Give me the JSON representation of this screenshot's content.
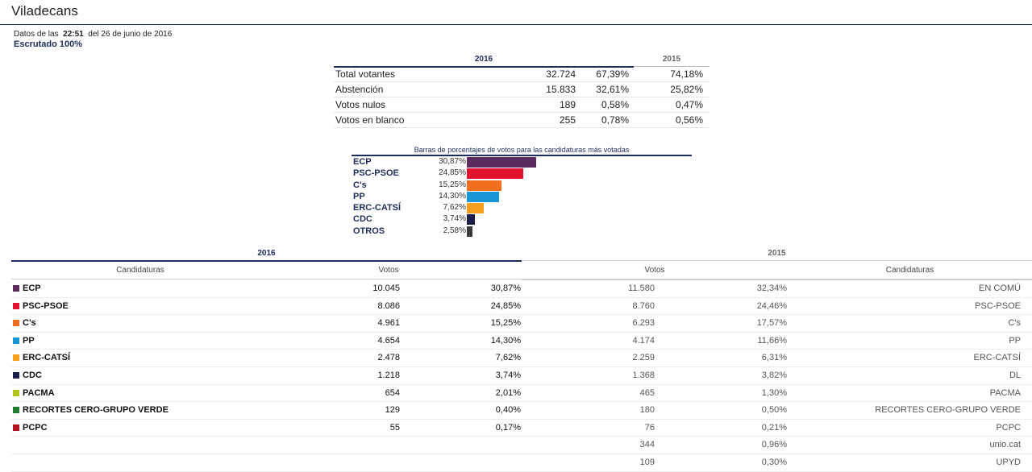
{
  "page": {
    "title": "Viladecans"
  },
  "meta": {
    "data_prefix": "Datos de las",
    "time": "22:51",
    "date_suffix": "del 26 de junio de 2016",
    "scrutiny": "Escrutado 100%"
  },
  "summary": {
    "year_current": "2016",
    "year_previous": "2015",
    "rows": [
      {
        "label": "Total votantes",
        "votes": "32.724",
        "pct": "67,39%",
        "pct_prev": "74,18%"
      },
      {
        "label": "Abstención",
        "votes": "15.833",
        "pct": "32,61%",
        "pct_prev": "25,82%"
      },
      {
        "label": "Votos nulos",
        "votes": "189",
        "pct": "0,58%",
        "pct_prev": "0,47%"
      },
      {
        "label": "Votos en blanco",
        "votes": "255",
        "pct": "0,78%",
        "pct_prev": "0,56%"
      }
    ]
  },
  "bars": {
    "title": "Barras de porcentajes de votos para las candidaturas más votadas",
    "items": [
      {
        "name": "ECP",
        "pct_label": "30,87%",
        "value": 30.87,
        "color": "#5b2a5e"
      },
      {
        "name": "PSC-PSOE",
        "pct_label": "24,85%",
        "value": 24.85,
        "color": "#e2112e"
      },
      {
        "name": "C's",
        "pct_label": "15,25%",
        "value": 15.25,
        "color": "#f07020"
      },
      {
        "name": "PP",
        "pct_label": "14,30%",
        "value": 14.3,
        "color": "#1a95d6"
      },
      {
        "name": "ERC-CATSÍ",
        "pct_label": "7,62%",
        "value": 7.62,
        "color": "#f5a020"
      },
      {
        "name": "CDC",
        "pct_label": "3,74%",
        "value": 3.74,
        "color": "#1b1f4a"
      },
      {
        "name": "OTROS",
        "pct_label": "2,58%",
        "value": 2.58,
        "color": "#3a3a3a"
      }
    ]
  },
  "results": {
    "year_current": "2016",
    "year_previous": "2015",
    "headers": {
      "candidaturas": "Candidaturas",
      "votos": "Votos",
      "votos_prev": "Votos",
      "candidaturas_prev": "Candidaturas"
    },
    "rows": [
      {
        "party": "ECP",
        "color": "#5b2a5e",
        "votes": "10.045",
        "pct": "30,87%",
        "votes_prev": "11.580",
        "pct_prev": "32,34%",
        "party_prev": "EN COMÚ"
      },
      {
        "party": "PSC-PSOE",
        "color": "#e2112e",
        "votes": "8.086",
        "pct": "24,85%",
        "votes_prev": "8.760",
        "pct_prev": "24,46%",
        "party_prev": "PSC-PSOE"
      },
      {
        "party": "C's",
        "color": "#f07020",
        "votes": "4.961",
        "pct": "15,25%",
        "votes_prev": "6.293",
        "pct_prev": "17,57%",
        "party_prev": "C's"
      },
      {
        "party": "PP",
        "color": "#1a95d6",
        "votes": "4.654",
        "pct": "14,30%",
        "votes_prev": "4.174",
        "pct_prev": "11,66%",
        "party_prev": "PP"
      },
      {
        "party": "ERC-CATSÍ",
        "color": "#f5a020",
        "votes": "2.478",
        "pct": "7,62%",
        "votes_prev": "2.259",
        "pct_prev": "6,31%",
        "party_prev": "ERC-CATSÍ"
      },
      {
        "party": "CDC",
        "color": "#1b1f4a",
        "votes": "1.218",
        "pct": "3,74%",
        "votes_prev": "1.368",
        "pct_prev": "3,82%",
        "party_prev": "DL"
      },
      {
        "party": "PACMA",
        "color": "#b5c41e",
        "votes": "654",
        "pct": "2,01%",
        "votes_prev": "465",
        "pct_prev": "1,30%",
        "party_prev": "PACMA"
      },
      {
        "party": "RECORTES CERO-GRUPO VERDE",
        "color": "#1e7d2c",
        "votes": "129",
        "pct": "0,40%",
        "votes_prev": "180",
        "pct_prev": "0,50%",
        "party_prev": "RECORTES CERO-GRUPO VERDE"
      },
      {
        "party": "PCPC",
        "color": "#b0141e",
        "votes": "55",
        "pct": "0,17%",
        "votes_prev": "76",
        "pct_prev": "0,21%",
        "party_prev": "PCPC"
      },
      {
        "party": "",
        "color": "",
        "votes": "",
        "pct": "",
        "votes_prev": "344",
        "pct_prev": "0,96%",
        "party_prev": "unio.cat"
      },
      {
        "party": "",
        "color": "",
        "votes": "",
        "pct": "",
        "votes_prev": "109",
        "pct_prev": "0,30%",
        "party_prev": "UPYD"
      }
    ]
  }
}
